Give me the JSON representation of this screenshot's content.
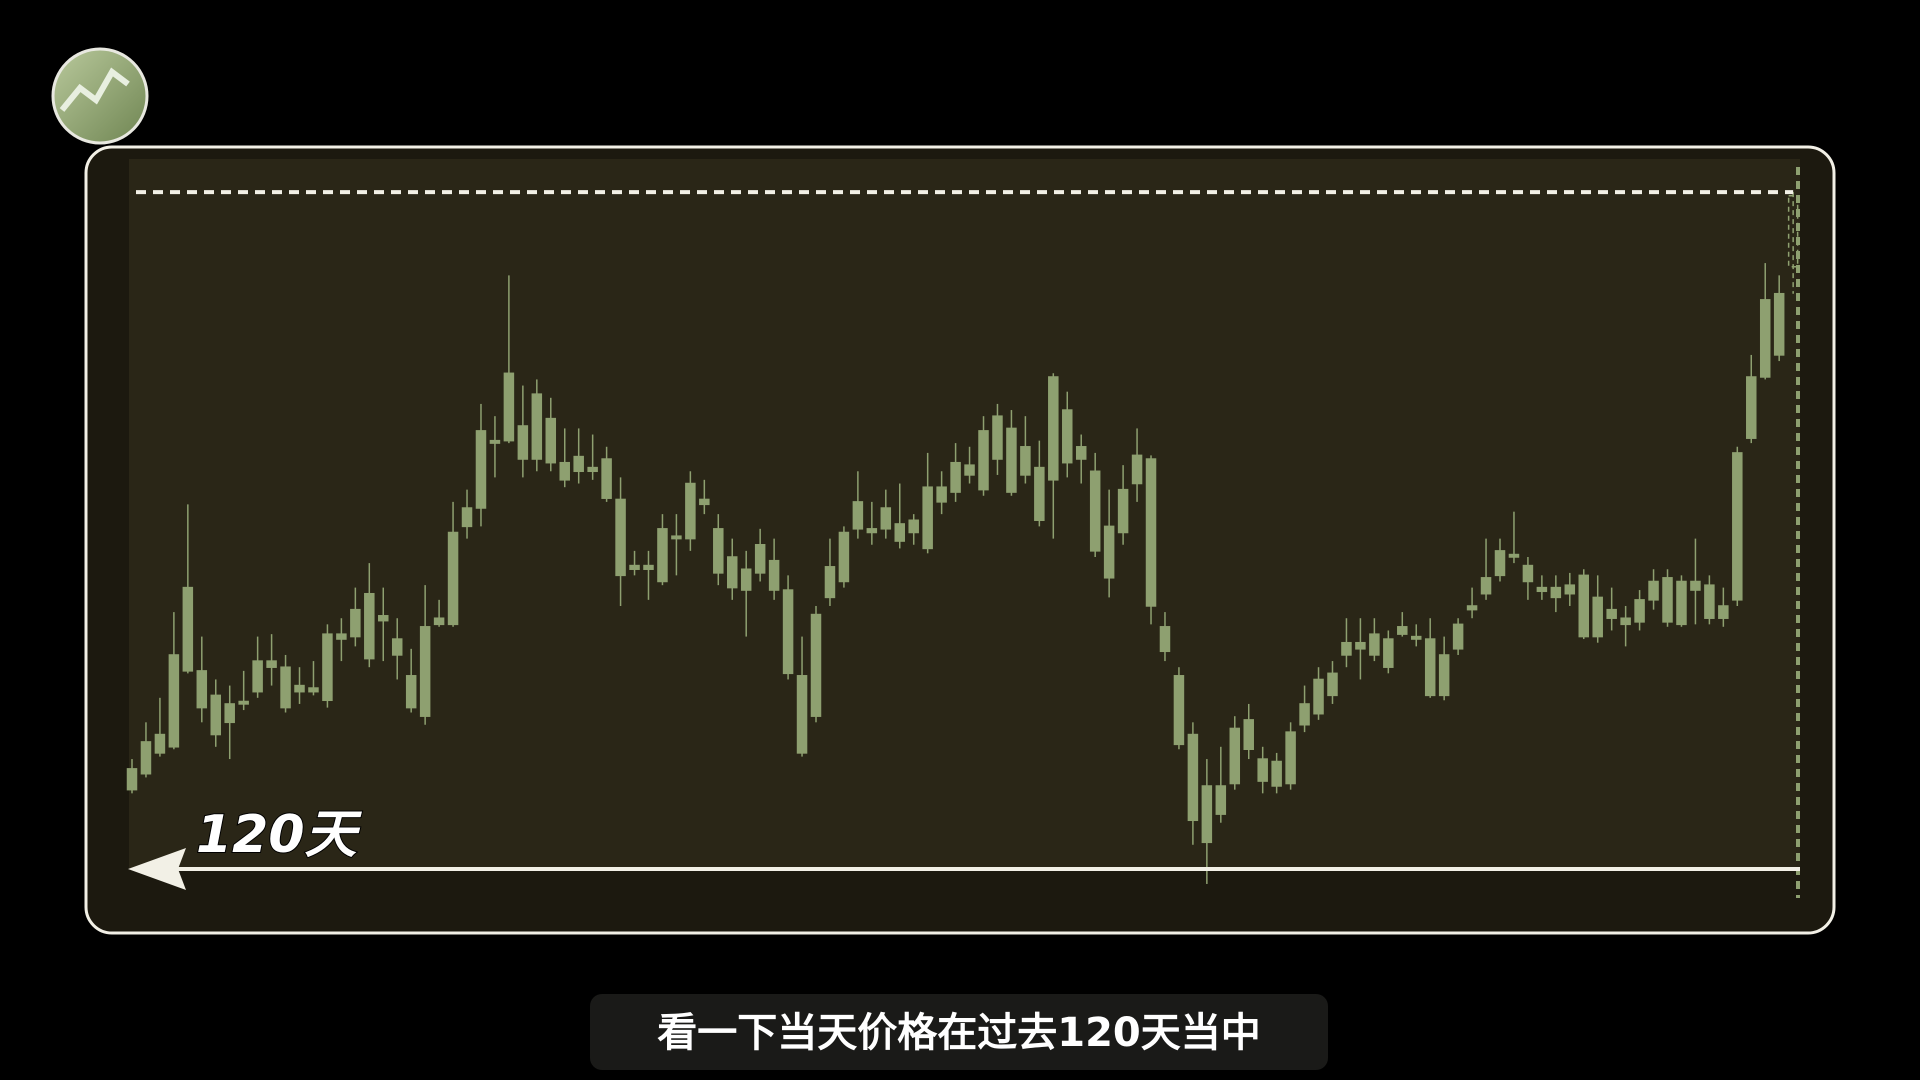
{
  "chart_data": {
    "type": "candlestick",
    "annotation": "120天",
    "color": "#8ea070",
    "ylim": [
      0,
      610
    ],
    "open": [
      95,
      108,
      125,
      130,
      192,
      192,
      172,
      150,
      165,
      175,
      200,
      195,
      175,
      178,
      168,
      222,
      220,
      202,
      237,
      218,
      188,
      155,
      235,
      230,
      310,
      325,
      378,
      380,
      392,
      365,
      398,
      362,
      355,
      358,
      365,
      332,
      278,
      275,
      265,
      300,
      300,
      332,
      308,
      285,
      275,
      272,
      282,
      258,
      188,
      155,
      277,
      265,
      308,
      308,
      308,
      312,
      305,
      292,
      330,
      362,
      352,
      340,
      365,
      390,
      352,
      358,
      348,
      405,
      365,
      355,
      310,
      305,
      345,
      365,
      228,
      188,
      140,
      98,
      75,
      100,
      128,
      102,
      118,
      100,
      148,
      157,
      172,
      205,
      210,
      205,
      218,
      228,
      220,
      218,
      205,
      210,
      242,
      255,
      270,
      285,
      278,
      260,
      260,
      255,
      270,
      252,
      242,
      235,
      232,
      250,
      268,
      265,
      258,
      262,
      235,
      250,
      382,
      432,
      450,
      522
    ],
    "high": [
      120,
      150,
      170,
      240,
      328,
      220,
      185,
      180,
      192,
      220,
      222,
      205,
      195,
      200,
      230,
      235,
      260,
      280,
      260,
      235,
      210,
      262,
      250,
      330,
      340,
      410,
      400,
      515,
      425,
      430,
      415,
      390,
      390,
      385,
      375,
      350,
      290,
      290,
      320,
      320,
      355,
      348,
      320,
      300,
      290,
      308,
      300,
      270,
      220,
      245,
      300,
      310,
      355,
      330,
      340,
      345,
      320,
      370,
      355,
      378,
      375,
      400,
      410,
      405,
      400,
      380,
      435,
      420,
      385,
      370,
      340,
      360,
      390,
      368,
      240,
      195,
      150,
      120,
      130,
      155,
      165,
      130,
      125,
      150,
      180,
      195,
      200,
      235,
      235,
      235,
      225,
      240,
      230,
      235,
      220,
      235,
      260,
      300,
      300,
      322,
      285,
      270,
      270,
      272,
      275,
      270,
      260,
      245,
      258,
      275,
      275,
      270,
      300,
      270,
      260,
      375,
      450,
      525,
      515,
      583
    ],
    "low": [
      92,
      105,
      122,
      128,
      190,
      150,
      130,
      120,
      160,
      170,
      180,
      158,
      165,
      172,
      162,
      200,
      212,
      195,
      200,
      185,
      158,
      148,
      228,
      228,
      300,
      310,
      350,
      378,
      350,
      355,
      355,
      342,
      345,
      348,
      330,
      245,
      270,
      250,
      262,
      270,
      290,
      320,
      262,
      250,
      220,
      265,
      250,
      185,
      122,
      150,
      245,
      260,
      300,
      295,
      300,
      292,
      295,
      288,
      320,
      330,
      345,
      335,
      352,
      335,
      345,
      310,
      300,
      350,
      345,
      285,
      252,
      295,
      330,
      230,
      200,
      128,
      50,
      18,
      68,
      95,
      120,
      92,
      92,
      95,
      142,
      152,
      165,
      195,
      185,
      200,
      190,
      220,
      212,
      170,
      168,
      205,
      235,
      250,
      265,
      280,
      250,
      250,
      240,
      245,
      218,
      215,
      225,
      212,
      225,
      242,
      228,
      228,
      230,
      230,
      228,
      245,
      378,
      430,
      445,
      500
    ],
    "close": [
      112,
      134,
      140,
      205,
      260,
      162,
      140,
      165,
      167,
      200,
      195,
      162,
      180,
      175,
      222,
      218,
      242,
      255,
      233,
      205,
      162,
      228,
      230,
      305,
      325,
      388,
      380,
      435,
      365,
      418,
      362,
      348,
      367,
      355,
      333,
      270,
      275,
      278,
      308,
      302,
      345,
      328,
      272,
      260,
      258,
      295,
      258,
      190,
      125,
      238,
      252,
      305,
      330,
      305,
      325,
      298,
      315,
      342,
      342,
      338,
      360,
      388,
      400,
      338,
      375,
      315,
      432,
      362,
      375,
      290,
      268,
      340,
      368,
      245,
      208,
      132,
      70,
      52,
      98,
      145,
      152,
      120,
      98,
      142,
      165,
      185,
      190,
      215,
      215,
      222,
      195,
      222,
      218,
      172,
      172,
      230,
      245,
      268,
      290,
      287,
      265,
      257,
      252,
      262,
      220,
      220,
      235,
      230,
      250,
      265,
      232,
      230,
      265,
      235,
      245,
      370,
      432,
      495,
      500,
      580
    ]
  },
  "subtitle": "看一下当天价格在过去120天当中"
}
